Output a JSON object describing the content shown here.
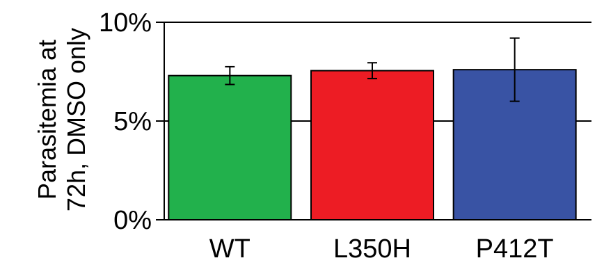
{
  "chart_data": {
    "type": "bar",
    "title": "",
    "xlabel": "",
    "ylabel_lines": [
      "Parasitemia at",
      "72h, DMSO only"
    ],
    "ylim": [
      0,
      10
    ],
    "yticks": [
      0,
      5,
      10
    ],
    "ytick_labels": [
      "0%",
      "5%",
      "10%"
    ],
    "grid": true,
    "categories": [
      "WT",
      "L350H",
      "P412T"
    ],
    "values": [
      7.3,
      7.55,
      7.6
    ],
    "errors": [
      0.45,
      0.4,
      1.6
    ],
    "colors": [
      "#22b14c",
      "#ed1c24",
      "#3953a4"
    ]
  }
}
